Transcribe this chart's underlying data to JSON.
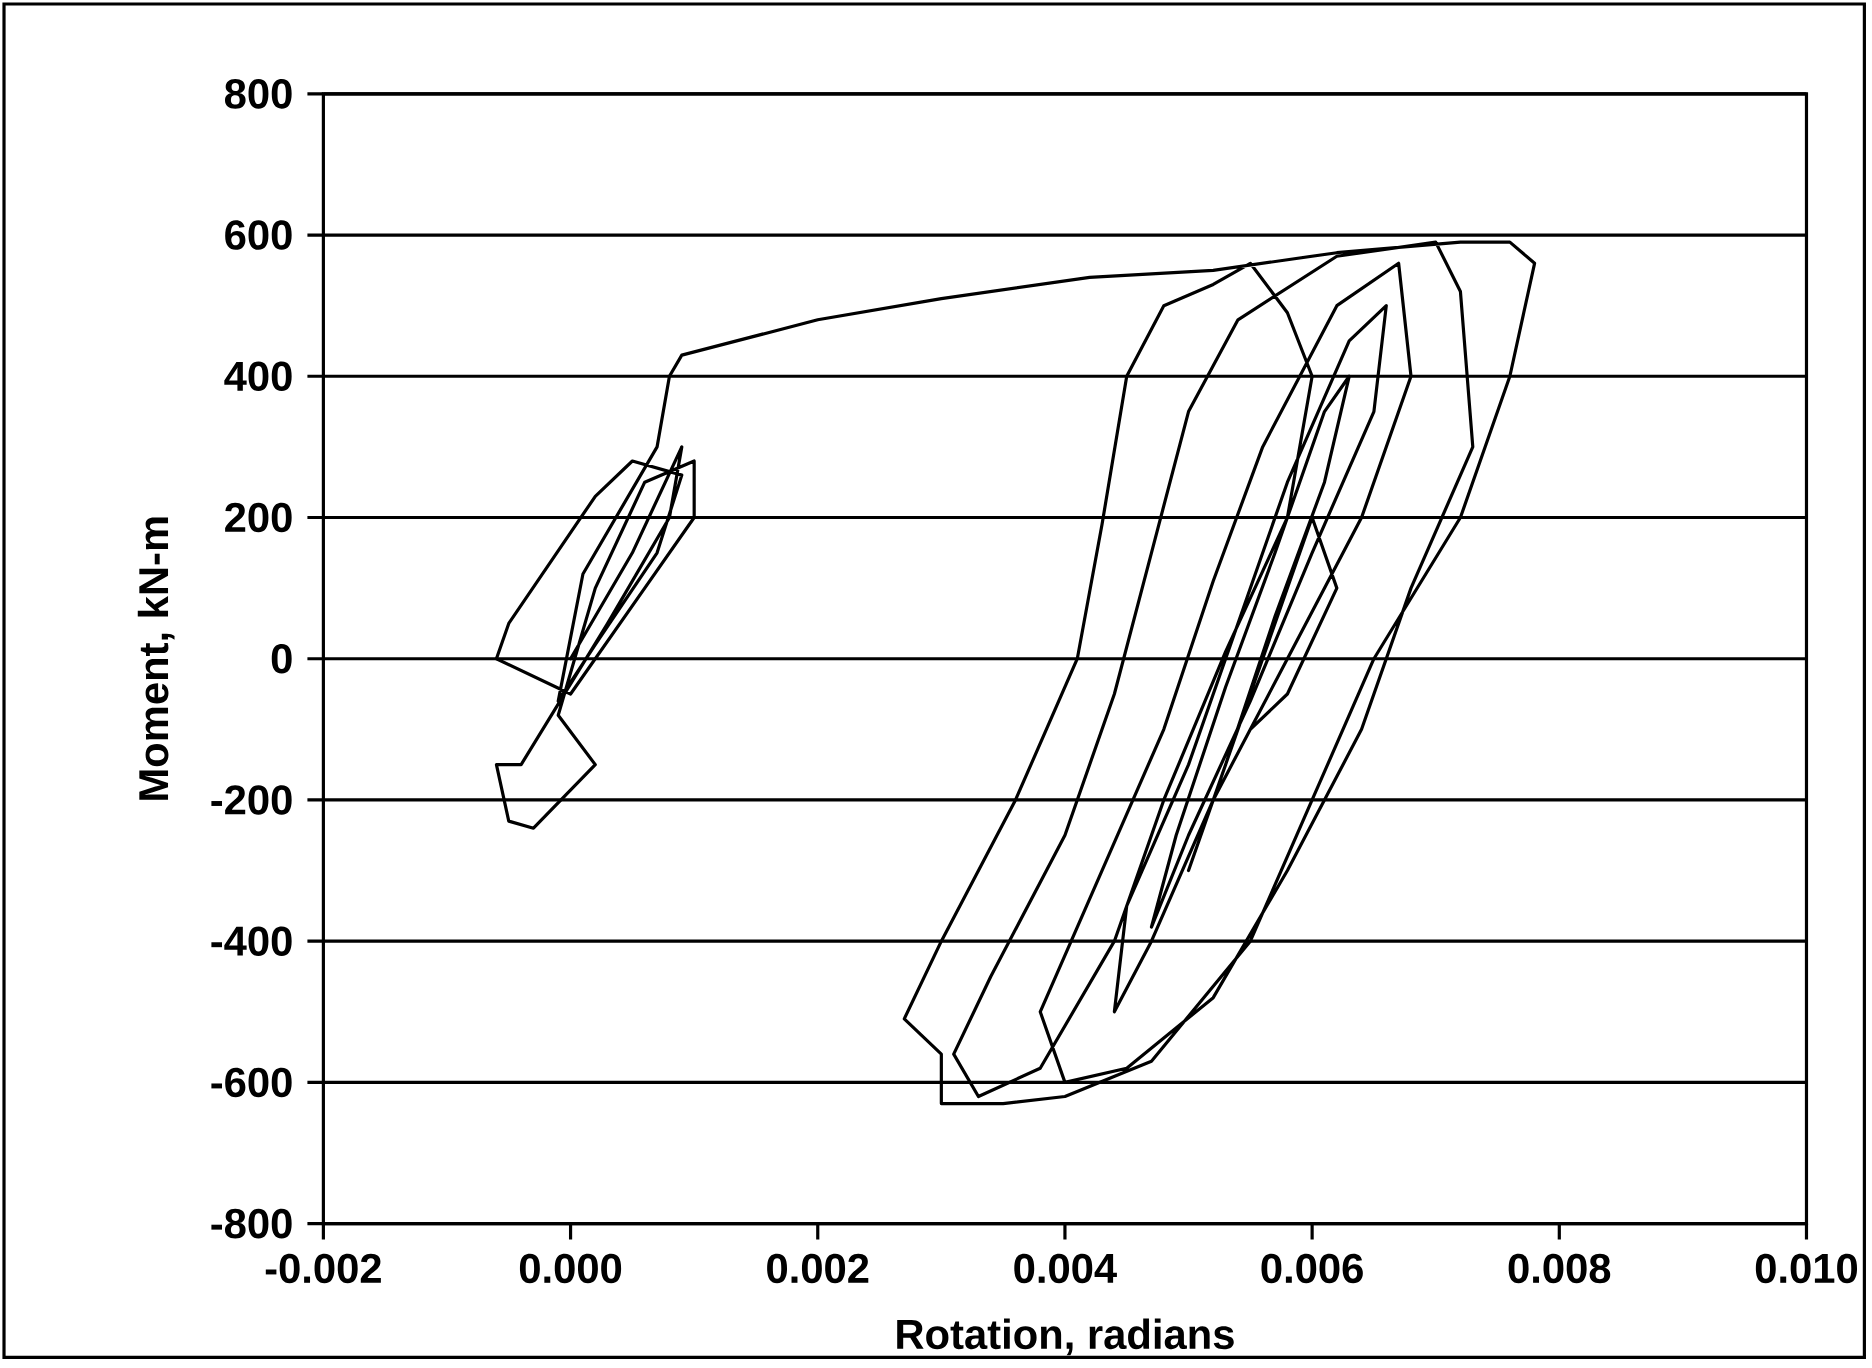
{
  "chart_data": {
    "type": "line",
    "xlabel": "Rotation, radians",
    "ylabel": "Moment, kN-m",
    "xlim": [
      -0.002,
      0.01
    ],
    "ylim": [
      -800,
      800
    ],
    "xticks": [
      {
        "value": -0.002,
        "label": "-0.002"
      },
      {
        "value": 0,
        "label": "0.000"
      },
      {
        "value": 0.002,
        "label": "0.002"
      },
      {
        "value": 0.004,
        "label": "0.004"
      },
      {
        "value": 0.006,
        "label": "0.006"
      },
      {
        "value": 0.008,
        "label": "0.008"
      },
      {
        "value": 0.01,
        "label": "0.010"
      }
    ],
    "yticks": [
      -800,
      -600,
      -400,
      -200,
      0,
      200,
      400,
      600,
      800
    ],
    "grid": "y",
    "marker": "none",
    "line_style": "solid",
    "series": [
      {
        "color": "#000000",
        "x": [
          0,
          0.0005,
          0.0009,
          0.0008,
          0.0003,
          -0.0004,
          -0.0006,
          -0.0005,
          -0.0003,
          0.0002,
          -0.0001,
          0.0002,
          0.0006,
          0.001,
          0.001,
          0.0006,
          0,
          -0.0006,
          -0.0005,
          0.0002,
          0.0005,
          0.0009,
          0.0007,
          0.0002,
          -0.0001,
          0.0001,
          0.0007,
          0.0008,
          0.0009,
          0.002,
          0.003,
          0.0042,
          0.0052,
          0.0062,
          0.0072,
          0.0076,
          0.0078,
          0.0076,
          0.0072,
          0.0065,
          0.006,
          0.0055,
          0.0047,
          0.004,
          0.0035,
          0.003,
          0.003,
          0.0027,
          0.003,
          0.0036,
          0.0041,
          0.0043,
          0.0045,
          0.0048,
          0.0052,
          0.0055,
          0.0058,
          0.006,
          0.0058,
          0.0053,
          0.0048,
          0.0044,
          0.0038,
          0.0033,
          0.0031,
          0.0034,
          0.004,
          0.0044,
          0.0047,
          0.005,
          0.0054,
          0.0062,
          0.007,
          0.0072,
          0.0073,
          0.0068,
          0.0064,
          0.0058,
          0.0052,
          0.0045,
          0.004,
          0.0038,
          0.0043,
          0.0048,
          0.0052,
          0.0056,
          0.0062,
          0.0067,
          0.0068,
          0.0064,
          0.0058,
          0.0052,
          0.0047,
          0.0044,
          0.0045,
          0.005,
          0.0054,
          0.0058,
          0.0063,
          0.0066,
          0.0065,
          0.006,
          0.0055,
          0.005,
          0.0047,
          0.0049,
          0.0053,
          0.0057,
          0.0061,
          0.0063,
          0.0061,
          0.0057,
          0.0053,
          0.005,
          0.0052,
          0.0056,
          0.006,
          0.0062,
          0.0058,
          0.0055
        ],
        "values": [
          0,
          150,
          300,
          200,
          50,
          -150,
          -150,
          -230,
          -240,
          -150,
          -80,
          100,
          250,
          280,
          200,
          100,
          -50,
          0,
          50,
          230,
          280,
          260,
          150,
          20,
          -60,
          120,
          300,
          400,
          430,
          480,
          510,
          540,
          550,
          575,
          590,
          590,
          560,
          400,
          200,
          0,
          -200,
          -400,
          -570,
          -620,
          -630,
          -630,
          -560,
          -510,
          -400,
          -200,
          0,
          190,
          400,
          500,
          530,
          560,
          490,
          400,
          200,
          10,
          -200,
          -400,
          -580,
          -620,
          -560,
          -450,
          -250,
          -50,
          150,
          350,
          480,
          570,
          590,
          520,
          300,
          100,
          -100,
          -300,
          -480,
          -580,
          -600,
          -500,
          -300,
          -100,
          110,
          300,
          500,
          560,
          400,
          200,
          0,
          -200,
          -400,
          -500,
          -350,
          -150,
          50,
          250,
          450,
          500,
          350,
          150,
          -60,
          -250,
          -380,
          -250,
          -40,
          150,
          350,
          400,
          250,
          60,
          -150,
          -300,
          -200,
          0,
          200,
          100,
          -50,
          -100
        ]
      }
    ]
  }
}
